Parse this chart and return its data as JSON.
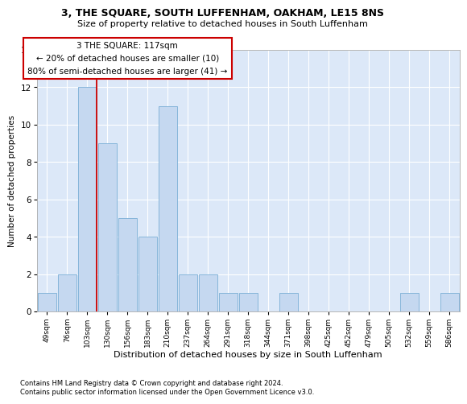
{
  "title": "3, THE SQUARE, SOUTH LUFFENHAM, OAKHAM, LE15 8NS",
  "subtitle": "Size of property relative to detached houses in South Luffenham",
  "xlabel": "Distribution of detached houses by size in South Luffenham",
  "ylabel": "Number of detached properties",
  "categories": [
    "49sqm",
    "76sqm",
    "103sqm",
    "130sqm",
    "156sqm",
    "183sqm",
    "210sqm",
    "237sqm",
    "264sqm",
    "291sqm",
    "318sqm",
    "344sqm",
    "371sqm",
    "398sqm",
    "425sqm",
    "452sqm",
    "479sqm",
    "505sqm",
    "532sqm",
    "559sqm",
    "586sqm"
  ],
  "values": [
    1,
    2,
    12,
    9,
    5,
    4,
    11,
    2,
    2,
    1,
    1,
    0,
    1,
    0,
    0,
    0,
    0,
    0,
    1,
    0,
    1
  ],
  "bar_color": "#c5d8f0",
  "bar_edge_color": "#7aaed6",
  "redline_index": 2,
  "redline_color": "#cc0000",
  "annotation_line1": "3 THE SQUARE: 117sqm",
  "annotation_line2": "← 20% of detached houses are smaller (10)",
  "annotation_line3": "80% of semi-detached houses are larger (41) →",
  "annotation_box_facecolor": "#ffffff",
  "annotation_box_edgecolor": "#cc0000",
  "ylim": [
    0,
    14
  ],
  "yticks": [
    0,
    2,
    4,
    6,
    8,
    10,
    12,
    14
  ],
  "plot_bg_color": "#dce8f8",
  "grid_color": "#ffffff",
  "footer1": "Contains HM Land Registry data © Crown copyright and database right 2024.",
  "footer2": "Contains public sector information licensed under the Open Government Licence v3.0."
}
